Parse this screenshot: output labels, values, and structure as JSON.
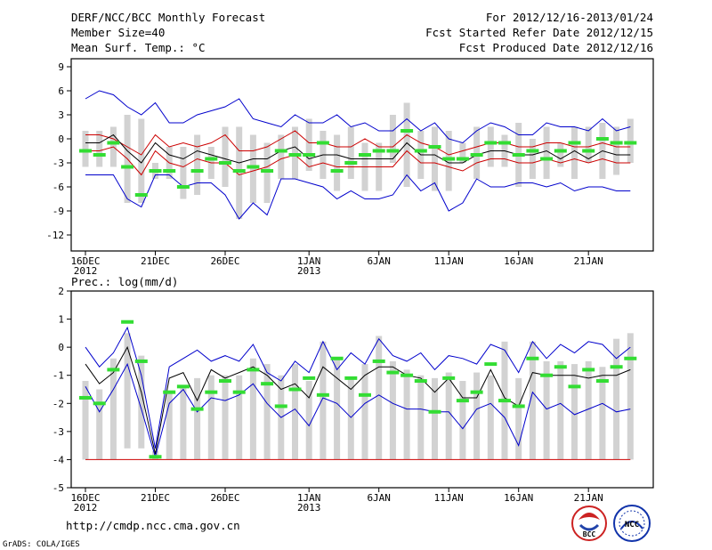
{
  "header": {
    "title": "DERF/NCC/BCC Monthly Forecast",
    "member_size": "Member Size=40",
    "variable": "Mean Surf. Temp.: °C",
    "period": "For 2012/12/16-2013/01/24",
    "started": "Fcst Started Refer Date 2012/12/15",
    "produced": "Fcst Produced Date 2012/12/16"
  },
  "footer": {
    "url": "http://cmdp.ncc.cma.gov.cn",
    "grads": "GrADS: COLA/IGES",
    "logo_bcc": "BCC",
    "logo_ncc": "NCC"
  },
  "colors": {
    "bar": "#d2d2d2",
    "max_line": "#0000cc",
    "mean_line": "#000000",
    "quartile_line": "#cc0000",
    "marker": "#33dd33"
  },
  "chart_data": [
    {
      "type": "box-ensemble",
      "title": "Mean Surf. Temp.: °C",
      "ylabel": "",
      "ylim": [
        -14,
        10
      ],
      "yticks": [
        9,
        6,
        3,
        0,
        -3,
        -6,
        -9,
        -12
      ],
      "x_day_range": [
        0,
        40
      ],
      "xticks": [
        {
          "day": 0,
          "label": "16DEC",
          "sub": "2012"
        },
        {
          "day": 5,
          "label": "21DEC",
          "sub": ""
        },
        {
          "day": 10,
          "label": "26DEC",
          "sub": ""
        },
        {
          "day": 16,
          "label": "1JAN",
          "sub": "2013"
        },
        {
          "day": 21,
          "label": "6JAN",
          "sub": ""
        },
        {
          "day": 26,
          "label": "11JAN",
          "sub": ""
        },
        {
          "day": 31,
          "label": "16JAN",
          "sub": ""
        },
        {
          "day": 36,
          "label": "21JAN",
          "sub": ""
        }
      ],
      "bar_low": [
        -3.5,
        -3.5,
        -3.5,
        -8.0,
        -8.0,
        -5.0,
        -5.0,
        -7.5,
        -7.0,
        -5.0,
        -6.0,
        -10.0,
        -8.0,
        -8.0,
        -5.0,
        -5.0,
        -4.0,
        -5.0,
        -6.5,
        -5.0,
        -6.5,
        -6.5,
        -3.0,
        -6.0,
        -5.0,
        -6.5,
        -6.5,
        -3.0,
        -5.0,
        -3.5,
        -3.5,
        -6.0,
        -5.0,
        -5.0,
        -3.5,
        -5.0,
        -3.0,
        -5.0,
        -4.5,
        -3.0
      ],
      "bar_high": [
        1.0,
        1.0,
        1.5,
        3.0,
        2.5,
        -3.0,
        -1.0,
        -1.0,
        0.5,
        -1.0,
        1.5,
        1.5,
        0.5,
        -0.5,
        0.5,
        1.5,
        2.5,
        1.0,
        0.5,
        1.5,
        -0.5,
        -0.5,
        3.0,
        4.5,
        1.0,
        1.5,
        1.0,
        -0.5,
        1.5,
        1.5,
        0.5,
        2.0,
        0.0,
        1.5,
        -0.5,
        1.5,
        1.5,
        2.0,
        1.5,
        2.5
      ],
      "markers": [
        -1.5,
        -2.0,
        -0.5,
        -3.5,
        -7.0,
        -4.0,
        -4.0,
        -6.0,
        -4.0,
        -2.5,
        -3.0,
        -4.0,
        -3.5,
        -4.0,
        -1.5,
        -2.0,
        -2.0,
        -0.5,
        -4.0,
        -3.0,
        -2.0,
        -1.5,
        -1.5,
        1.0,
        -1.5,
        -1.0,
        -2.5,
        -2.5,
        -2.0,
        -0.5,
        -0.5,
        -2.0,
        -1.5,
        -2.5,
        -1.5,
        -0.5,
        -1.5,
        0.0,
        -0.5,
        -0.5
      ],
      "series": [
        {
          "name": "max",
          "values": [
            5.0,
            6.0,
            5.5,
            4.0,
            3.0,
            4.5,
            2.0,
            2.0,
            3.0,
            3.5,
            4.0,
            5.0,
            2.5,
            2.0,
            1.5,
            3.0,
            2.0,
            2.0,
            3.0,
            1.5,
            2.0,
            1.0,
            1.0,
            2.5,
            1.0,
            2.0,
            0.0,
            -0.5,
            1.0,
            2.0,
            1.5,
            0.5,
            0.5,
            2.0,
            1.5,
            1.5,
            1.0,
            2.5,
            1.0,
            1.5
          ]
        },
        {
          "name": "upper",
          "values": [
            0.5,
            0.5,
            0.0,
            -1.0,
            -2.0,
            0.5,
            -1.0,
            -0.5,
            -1.0,
            -0.5,
            0.5,
            -1.5,
            -1.5,
            -1.0,
            0.0,
            1.0,
            -0.5,
            -0.5,
            -1.0,
            -1.0,
            0.0,
            -1.0,
            -1.0,
            0.5,
            -0.5,
            -1.0,
            -2.0,
            -1.5,
            -1.0,
            -0.5,
            -0.5,
            -1.0,
            -1.0,
            -0.5,
            -0.5,
            -1.0,
            -1.0,
            -0.5,
            -1.0,
            -1.0
          ]
        },
        {
          "name": "mean",
          "values": [
            -0.5,
            -0.5,
            0.5,
            -1.5,
            -3.0,
            -0.5,
            -2.0,
            -2.5,
            -1.5,
            -2.0,
            -2.5,
            -3.0,
            -2.5,
            -2.5,
            -1.5,
            -1.0,
            -2.5,
            -2.0,
            -2.0,
            -2.5,
            -2.5,
            -2.5,
            -2.5,
            -0.5,
            -2.0,
            -2.0,
            -3.0,
            -3.0,
            -2.0,
            -1.5,
            -1.5,
            -2.0,
            -2.0,
            -1.5,
            -2.5,
            -1.5,
            -2.5,
            -1.5,
            -2.0,
            -2.0
          ]
        },
        {
          "name": "lower",
          "values": [
            -1.5,
            -1.5,
            -1.0,
            -2.5,
            -4.5,
            -1.5,
            -3.0,
            -3.5,
            -2.5,
            -3.0,
            -3.0,
            -4.5,
            -4.0,
            -3.5,
            -2.5,
            -2.0,
            -3.5,
            -3.0,
            -3.5,
            -3.5,
            -3.5,
            -3.5,
            -3.5,
            -1.5,
            -3.0,
            -3.0,
            -3.5,
            -4.0,
            -3.0,
            -2.5,
            -2.5,
            -3.0,
            -3.0,
            -2.5,
            -3.0,
            -2.5,
            -3.0,
            -2.5,
            -3.0,
            -3.0
          ]
        },
        {
          "name": "min",
          "values": [
            -4.5,
            -4.5,
            -4.5,
            -7.5,
            -8.5,
            -4.5,
            -4.5,
            -6.0,
            -5.5,
            -5.5,
            -7.0,
            -10.0,
            -8.0,
            -9.5,
            -5.0,
            -5.0,
            -5.5,
            -6.0,
            -7.5,
            -6.5,
            -7.5,
            -7.5,
            -7.0,
            -4.5,
            -6.5,
            -5.5,
            -9.0,
            -8.0,
            -5.0,
            -6.0,
            -6.0,
            -5.5,
            -5.5,
            -6.0,
            -5.5,
            -6.5,
            -6.0,
            -6.0,
            -6.5,
            -6.5
          ]
        }
      ]
    },
    {
      "type": "box-ensemble",
      "title": "Prec.: log(mm/d)",
      "ylabel": "",
      "ylim": [
        -5,
        2
      ],
      "yticks": [
        2,
        1,
        0,
        -1,
        -2,
        -3,
        -4,
        -5
      ],
      "x_day_range": [
        0,
        40
      ],
      "xticks": [
        {
          "day": 0,
          "label": "16DEC",
          "sub": "2012"
        },
        {
          "day": 5,
          "label": "21DEC",
          "sub": ""
        },
        {
          "day": 10,
          "label": "26DEC",
          "sub": ""
        },
        {
          "day": 16,
          "label": "1JAN",
          "sub": "2013"
        },
        {
          "day": 21,
          "label": "6JAN",
          "sub": ""
        },
        {
          "day": 26,
          "label": "11JAN",
          "sub": ""
        },
        {
          "day": 31,
          "label": "16JAN",
          "sub": ""
        },
        {
          "day": 36,
          "label": "21JAN",
          "sub": ""
        }
      ],
      "bar_low": [
        -4,
        -4,
        -4,
        -3.6,
        -3.6,
        -4,
        -4,
        -4,
        -4,
        -4,
        -4,
        -4,
        -4,
        -4,
        -4,
        -4,
        -4,
        -4,
        -4,
        -4,
        -4,
        -4,
        -4,
        -4,
        -4,
        -4,
        -4,
        -4,
        -4,
        -4,
        -4,
        -4,
        -4,
        -4,
        -4,
        -4,
        -4,
        -4,
        -4,
        -4
      ],
      "bar_high": [
        -1.2,
        -1.5,
        -0.4,
        0.5,
        -0.3,
        -3.7,
        -1.6,
        -1.4,
        -1.1,
        -1.0,
        -1.0,
        -1.0,
        -0.4,
        -0.6,
        -1.0,
        -0.6,
        -1.2,
        0.2,
        -0.4,
        -1.1,
        -0.6,
        0.4,
        -0.5,
        -0.8,
        -1.0,
        -1.1,
        -0.9,
        -1.2,
        -0.9,
        -1.0,
        0.2,
        -1.1,
        0.2,
        -0.5,
        -0.5,
        -0.6,
        -0.5,
        -0.7,
        0.3,
        0.5
      ],
      "markers": [
        -1.8,
        -2.0,
        -0.8,
        0.9,
        -0.5,
        -3.9,
        -1.6,
        -1.4,
        -2.2,
        -1.6,
        -1.2,
        -1.6,
        -0.8,
        -1.3,
        -2.1,
        -1.5,
        -1.1,
        -1.7,
        -0.4,
        -1.1,
        -1.7,
        -0.5,
        -0.9,
        -1.0,
        -1.2,
        -2.3,
        -1.1,
        -1.9,
        -1.6,
        -0.6,
        -1.9,
        -2.1,
        -0.4,
        -1.0,
        -0.7,
        -1.4,
        -0.8,
        -1.2,
        -0.7,
        -0.4
      ],
      "series": [
        {
          "name": "max",
          "values": [
            0.0,
            -0.7,
            -0.2,
            0.7,
            -1.0,
            -3.6,
            -0.7,
            -0.4,
            -0.1,
            -0.5,
            -0.3,
            -0.5,
            0.1,
            -0.9,
            -1.2,
            -0.5,
            -0.9,
            0.2,
            -0.8,
            -0.2,
            -0.6,
            0.3,
            -0.3,
            -0.5,
            -0.2,
            -0.8,
            -0.3,
            -0.4,
            -0.6,
            0.1,
            -0.1,
            -0.9,
            0.2,
            -0.4,
            0.1,
            -0.2,
            0.2,
            0.1,
            -0.4,
            0.0
          ]
        },
        {
          "name": "mean",
          "values": [
            -0.6,
            -1.3,
            -0.9,
            0.0,
            -1.6,
            -3.8,
            -1.1,
            -0.9,
            -1.9,
            -0.8,
            -1.1,
            -0.9,
            -0.7,
            -1.0,
            -1.5,
            -1.3,
            -1.8,
            -0.7,
            -1.1,
            -1.5,
            -1.0,
            -0.7,
            -0.7,
            -1.0,
            -1.1,
            -1.6,
            -1.1,
            -1.8,
            -1.8,
            -0.8,
            -1.8,
            -2.1,
            -0.9,
            -1.0,
            -1.0,
            -1.0,
            -1.1,
            -1.0,
            -1.0,
            -0.8
          ]
        },
        {
          "name": "min",
          "values": [
            -1.4,
            -2.3,
            -1.5,
            -0.6,
            -2.2,
            -3.9,
            -2.0,
            -1.5,
            -2.3,
            -1.8,
            -1.9,
            -1.7,
            -1.3,
            -2.0,
            -2.5,
            -2.2,
            -2.8,
            -1.8,
            -2.0,
            -2.5,
            -2.0,
            -1.7,
            -2.0,
            -2.2,
            -2.2,
            -2.3,
            -2.3,
            -2.9,
            -2.2,
            -2.0,
            -2.5,
            -3.5,
            -1.6,
            -2.2,
            -2.0,
            -2.4,
            -2.2,
            -2.0,
            -2.3,
            -2.2
          ]
        },
        {
          "name": "floor",
          "values": [
            -4,
            -4,
            -4,
            -4,
            -4,
            -4,
            -4,
            -4,
            -4,
            -4,
            -4,
            -4,
            -4,
            -4,
            -4,
            -4,
            -4,
            -4,
            -4,
            -4,
            -4,
            -4,
            -4,
            -4,
            -4,
            -4,
            -4,
            -4,
            -4,
            -4,
            -4,
            -4,
            -4,
            -4,
            -4,
            -4,
            -4,
            -4,
            -4,
            -4
          ]
        }
      ]
    }
  ]
}
